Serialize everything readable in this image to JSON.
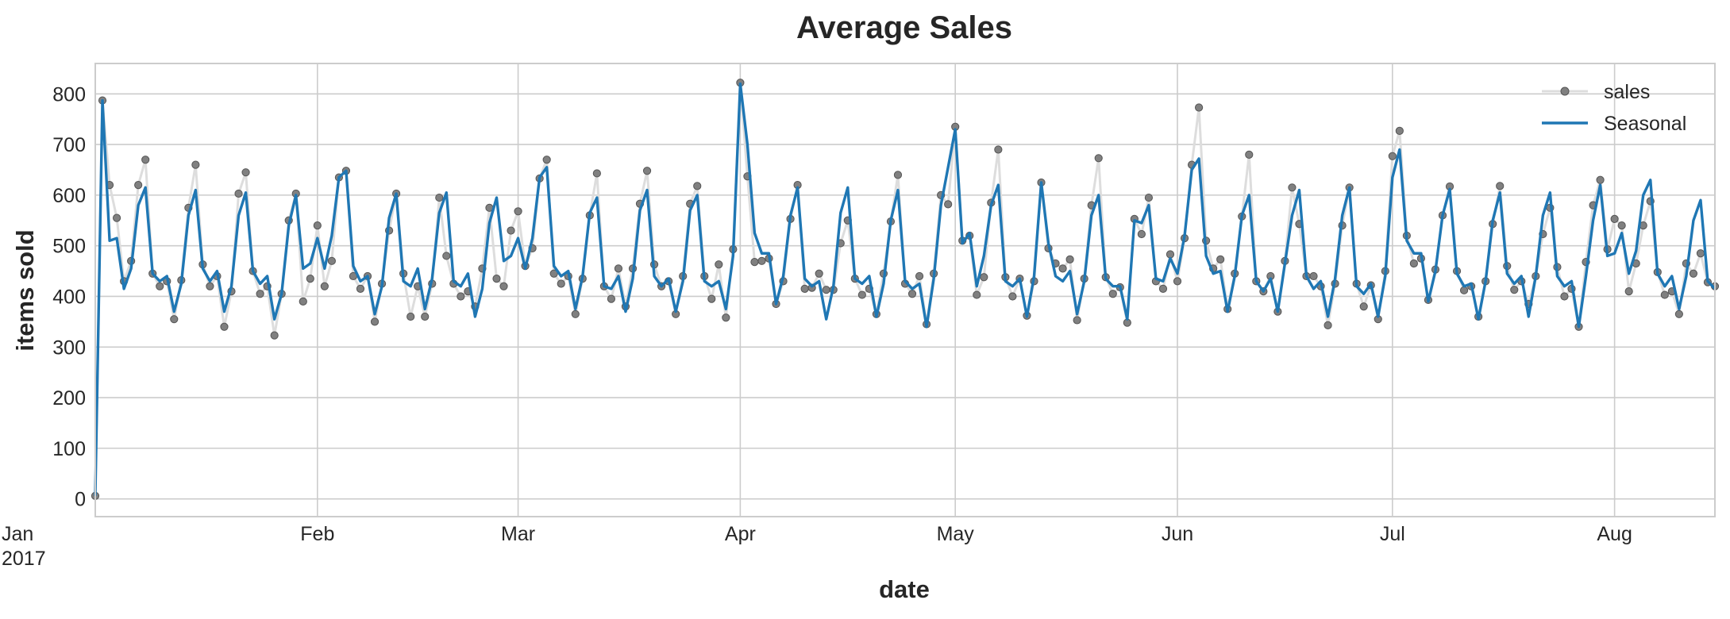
{
  "chart_data": {
    "type": "line",
    "title": "Average Sales",
    "xlabel": "date",
    "ylabel": "items sold",
    "x_start": "2017-01-01",
    "x_end": "2017-08-15",
    "x_ticks": [
      {
        "date": "2017-01-01",
        "label": "Jan",
        "sublabel": "2017"
      },
      {
        "date": "2017-02-01",
        "label": "Feb"
      },
      {
        "date": "2017-03-01",
        "label": "Mar"
      },
      {
        "date": "2017-04-01",
        "label": "Apr"
      },
      {
        "date": "2017-05-01",
        "label": "May"
      },
      {
        "date": "2017-06-01",
        "label": "Jun"
      },
      {
        "date": "2017-07-01",
        "label": "Jul"
      },
      {
        "date": "2017-08-01",
        "label": "Aug"
      }
    ],
    "ylim": [
      -35,
      860
    ],
    "y_ticks": [
      0,
      100,
      200,
      300,
      400,
      500,
      600,
      700,
      800
    ],
    "grid": true,
    "legend_position": "top-right",
    "series": [
      {
        "name": "sales",
        "style": "line-with-markers",
        "line_color": "#dddddd",
        "marker_color": "#808080",
        "values": [
          6,
          787,
          620,
          555,
          430,
          470,
          620,
          670,
          445,
          420,
          430,
          355,
          432,
          575,
          660,
          463,
          420,
          440,
          340,
          410,
          603,
          645,
          450,
          405,
          420,
          323,
          405,
          550,
          603,
          390,
          435,
          540,
          420,
          470,
          635,
          648,
          440,
          415,
          440,
          350,
          425,
          530,
          603,
          445,
          360,
          420,
          360,
          425,
          595,
          480,
          425,
          400,
          410,
          380,
          455,
          575,
          435,
          420,
          530,
          568,
          460,
          495,
          633,
          670,
          445,
          425,
          440,
          365,
          435,
          560,
          643,
          420,
          395,
          455,
          380,
          455,
          583,
          648,
          463,
          420,
          430,
          365,
          440,
          583,
          618,
          440,
          395,
          463,
          358,
          493,
          822,
          637,
          468,
          470,
          475,
          385,
          430,
          553,
          620,
          415,
          417,
          445,
          413,
          413,
          505,
          550,
          435,
          403,
          415,
          365,
          445,
          548,
          640,
          425,
          405,
          440,
          345,
          445,
          600,
          582,
          735,
          510,
          520,
          403,
          438,
          585,
          690,
          438,
          400,
          435,
          362,
          430,
          625,
          495,
          465,
          455,
          473,
          353,
          435,
          580,
          673,
          438,
          405,
          418,
          348,
          553,
          523,
          595,
          430,
          415,
          483,
          430,
          515,
          660,
          773,
          510,
          455,
          473,
          375,
          445,
          558,
          680,
          430,
          410,
          440,
          370,
          470,
          615,
          543,
          440,
          440,
          420,
          343,
          425,
          540,
          615,
          425,
          380,
          422,
          355,
          450,
          677,
          727,
          520,
          465,
          475,
          393,
          453,
          560,
          617,
          450,
          412,
          420,
          360,
          430,
          543,
          618,
          460,
          413,
          430,
          385,
          440,
          523,
          575,
          458,
          400,
          415,
          340,
          468,
          580,
          630,
          493,
          553,
          540,
          410,
          465,
          540,
          588,
          448,
          403,
          410,
          365,
          465,
          445,
          485,
          428,
          420
        ]
      },
      {
        "name": "Seasonal",
        "style": "line",
        "line_color": "#1f77b4",
        "values": [
          6,
          787,
          510,
          515,
          415,
          455,
          580,
          615,
          445,
          430,
          440,
          370,
          425,
          560,
          610,
          455,
          430,
          450,
          370,
          420,
          560,
          605,
          450,
          425,
          440,
          355,
          405,
          540,
          600,
          455,
          465,
          515,
          455,
          520,
          635,
          648,
          460,
          430,
          440,
          365,
          420,
          555,
          603,
          430,
          420,
          455,
          375,
          435,
          565,
          605,
          430,
          420,
          445,
          360,
          415,
          545,
          595,
          470,
          480,
          515,
          455,
          515,
          635,
          655,
          460,
          440,
          450,
          375,
          440,
          565,
          595,
          420,
          415,
          440,
          370,
          435,
          570,
          610,
          440,
          420,
          435,
          370,
          430,
          570,
          600,
          430,
          420,
          430,
          375,
          480,
          820,
          700,
          525,
          485,
          485,
          385,
          440,
          560,
          615,
          435,
          420,
          430,
          355,
          420,
          565,
          615,
          435,
          425,
          440,
          360,
          425,
          550,
          610,
          430,
          415,
          425,
          340,
          435,
          580,
          655,
          730,
          505,
          525,
          420,
          480,
          580,
          620,
          430,
          420,
          435,
          360,
          440,
          625,
          505,
          440,
          430,
          450,
          365,
          430,
          560,
          600,
          435,
          420,
          420,
          355,
          550,
          545,
          580,
          435,
          430,
          475,
          445,
          520,
          650,
          672,
          480,
          445,
          450,
          370,
          440,
          560,
          600,
          430,
          410,
          435,
          370,
          465,
          560,
          610,
          440,
          415,
          430,
          360,
          435,
          560,
          615,
          420,
          405,
          425,
          360,
          440,
          635,
          690,
          510,
          485,
          485,
          390,
          450,
          560,
          612,
          445,
          420,
          425,
          355,
          430,
          550,
          605,
          445,
          425,
          440,
          360,
          440,
          560,
          605,
          440,
          420,
          430,
          340,
          440,
          550,
          620,
          480,
          485,
          525,
          445,
          490,
          600,
          630,
          445,
          420,
          440,
          375,
          440,
          550,
          590,
          430,
          415
        ]
      }
    ]
  }
}
